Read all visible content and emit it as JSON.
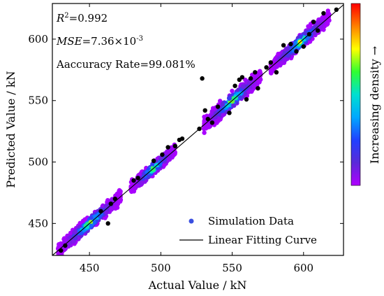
{
  "chart_data": {
    "type": "scatter",
    "xlabel": "Actual Value / kN",
    "ylabel": "Predicted Value / kN",
    "xlim": [
      424,
      628
    ],
    "ylim": [
      424,
      629
    ],
    "xticks": [
      450,
      500,
      550,
      600
    ],
    "yticks": [
      450,
      500,
      550,
      600
    ],
    "grid": false,
    "annotations": {
      "r2_symbol": "R",
      "r2_sup": "2",
      "r2_value": "=0.992",
      "mse_symbol": "MSE",
      "mse_value": "=7.36×10",
      "mse_sup": "-3",
      "accuracy": "Aaccuracy Rate=99.081%"
    },
    "legend": {
      "position": "bottom-right",
      "entries": [
        {
          "label": "Simulation Data",
          "color": "#3a4fe0"
        },
        {
          "label": "Linear Fitting Curve",
          "color": "#000000"
        }
      ]
    },
    "colorbar": {
      "label": "Increasing density →",
      "colors": [
        "#b000ff",
        "#5a2ad8",
        "#2040ff",
        "#00a8ff",
        "#00e0d0",
        "#30ff30",
        "#ffff00",
        "#ff8000",
        "#ff0000"
      ]
    },
    "fit_line": {
      "x": [
        424,
        628
      ],
      "y": [
        424,
        628
      ]
    },
    "clusters": [
      {
        "x_start": 428,
        "x_end": 472,
        "spread": 2.6
      },
      {
        "x_start": 479,
        "x_end": 510,
        "spread": 2.4
      },
      {
        "x_start": 530,
        "x_end": 570,
        "spread": 2.8
      },
      {
        "x_start": 577,
        "x_end": 618,
        "spread": 2.6
      }
    ],
    "outliers": [
      {
        "x": 430,
        "y": 428
      },
      {
        "x": 433,
        "y": 432
      },
      {
        "x": 458,
        "y": 460
      },
      {
        "x": 463,
        "y": 450
      },
      {
        "x": 465,
        "y": 466
      },
      {
        "x": 468,
        "y": 470
      },
      {
        "x": 481,
        "y": 485
      },
      {
        "x": 484,
        "y": 487
      },
      {
        "x": 495,
        "y": 501
      },
      {
        "x": 501,
        "y": 506
      },
      {
        "x": 505,
        "y": 512
      },
      {
        "x": 510,
        "y": 513
      },
      {
        "x": 513,
        "y": 518
      },
      {
        "x": 515,
        "y": 519
      },
      {
        "x": 527,
        "y": 527
      },
      {
        "x": 529,
        "y": 568
      },
      {
        "x": 531,
        "y": 542
      },
      {
        "x": 533,
        "y": 535
      },
      {
        "x": 536,
        "y": 532
      },
      {
        "x": 540,
        "y": 545
      },
      {
        "x": 548,
        "y": 540
      },
      {
        "x": 552,
        "y": 562
      },
      {
        "x": 555,
        "y": 567
      },
      {
        "x": 557,
        "y": 569
      },
      {
        "x": 560,
        "y": 551
      },
      {
        "x": 563,
        "y": 568
      },
      {
        "x": 566,
        "y": 573
      },
      {
        "x": 568,
        "y": 560
      },
      {
        "x": 574,
        "y": 577
      },
      {
        "x": 577,
        "y": 581
      },
      {
        "x": 581,
        "y": 573
      },
      {
        "x": 586,
        "y": 595
      },
      {
        "x": 591,
        "y": 596
      },
      {
        "x": 595,
        "y": 590
      },
      {
        "x": 600,
        "y": 594
      },
      {
        "x": 604,
        "y": 604
      },
      {
        "x": 607,
        "y": 614
      },
      {
        "x": 610,
        "y": 607
      },
      {
        "x": 614,
        "y": 621
      },
      {
        "x": 623,
        "y": 624
      }
    ]
  }
}
